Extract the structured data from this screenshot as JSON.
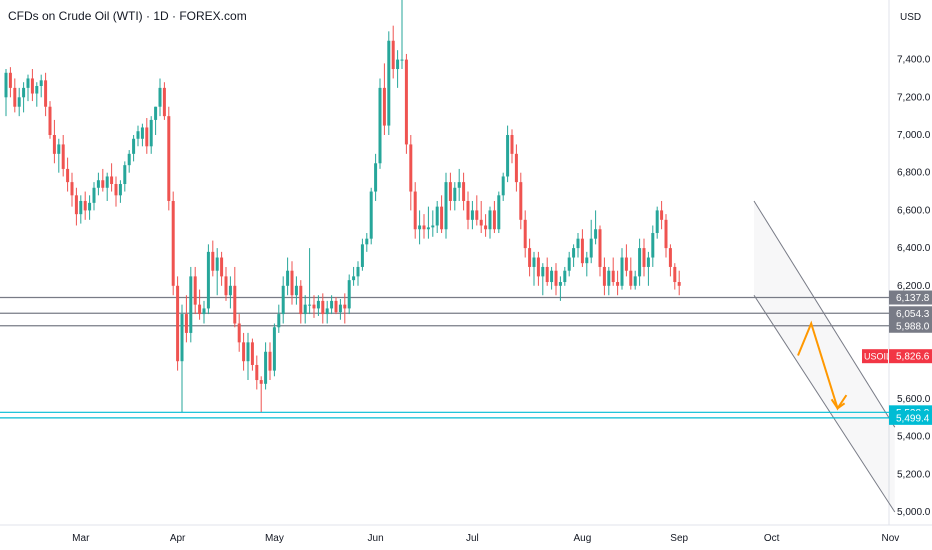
{
  "chart_data": {
    "type": "candlestick",
    "title": "CFDs on Crude Oil (WTI) · 1D · FOREX.com",
    "currency_label": "USD",
    "price_axis": {
      "ylim": [
        4930,
        7800
      ],
      "ticks": [
        "7,400.0",
        "7,200.0",
        "7,000.0",
        "6,800.0",
        "6,600.0",
        "6,400.0",
        "6,200.0",
        "5,600.0",
        "5,400.0",
        "5,200.0",
        "5,000.0"
      ],
      "tick_values": [
        7400,
        7200,
        7000,
        6800,
        6600,
        6400,
        6200,
        5600,
        5400,
        5200,
        5000
      ]
    },
    "time_axis": {
      "labels": [
        "Mar",
        "Apr",
        "May",
        "Jun",
        "Jul",
        "Aug",
        "Sep",
        "Oct",
        "Nov"
      ],
      "label_bar_index": [
        17,
        39,
        61,
        84,
        106,
        131,
        153,
        174,
        201
      ]
    },
    "colors": {
      "up": "#26a69a",
      "down": "#ef5350",
      "level": "#787b86",
      "support": "#00bcd4",
      "projection": "#ff9800",
      "channel": "#787b86",
      "current": "#f23645"
    },
    "horizontal_levels": [
      {
        "value": 6137.8,
        "label": "6,137.8",
        "color": "#787b86"
      },
      {
        "value": 6054.3,
        "label": "6,054.3",
        "color": "#787b86"
      },
      {
        "value": 5988.0,
        "label": "5,988.0",
        "color": "#787b86"
      },
      {
        "value": 5528.8,
        "label": "5,528.8",
        "color": "#00bcd4"
      },
      {
        "value": 5499.4,
        "label": "5,499.4",
        "color": "#00bcd4"
      }
    ],
    "current_price": {
      "symbol": "USOIL",
      "value": 5826.6,
      "label": "5,826.6"
    },
    "channel": {
      "upper": [
        [
          170,
          6650
        ],
        [
          202,
          5450
        ]
      ],
      "lower": [
        [
          170,
          6150
        ],
        [
          202,
          5000
        ]
      ]
    },
    "projection": [
      [
        180,
        5830
      ],
      [
        183,
        6000
      ],
      [
        189,
        5550
      ],
      [
        191,
        5620
      ]
    ],
    "candles": [
      [
        7200,
        7350,
        7100,
        7330
      ],
      [
        7330,
        7360,
        7200,
        7250
      ],
      [
        7250,
        7300,
        7120,
        7150
      ],
      [
        7150,
        7250,
        7100,
        7200
      ],
      [
        7200,
        7280,
        7120,
        7250
      ],
      [
        7250,
        7320,
        7180,
        7300
      ],
      [
        7300,
        7350,
        7180,
        7220
      ],
      [
        7220,
        7280,
        7150,
        7260
      ],
      [
        7260,
        7320,
        7200,
        7290
      ],
      [
        7290,
        7330,
        7100,
        7150
      ],
      [
        7150,
        7180,
        6980,
        7000
      ],
      [
        7000,
        7080,
        6850,
        6900
      ],
      [
        6900,
        6980,
        6800,
        6950
      ],
      [
        6950,
        7000,
        6780,
        6820
      ],
      [
        6820,
        6880,
        6700,
        6750
      ],
      [
        6750,
        6800,
        6620,
        6680
      ],
      [
        6680,
        6720,
        6520,
        6580
      ],
      [
        6580,
        6680,
        6530,
        6650
      ],
      [
        6650,
        6700,
        6550,
        6600
      ],
      [
        6600,
        6680,
        6550,
        6640
      ],
      [
        6640,
        6750,
        6600,
        6720
      ],
      [
        6720,
        6800,
        6680,
        6760
      ],
      [
        6760,
        6820,
        6700,
        6720
      ],
      [
        6720,
        6800,
        6650,
        6780
      ],
      [
        6780,
        6850,
        6700,
        6740
      ],
      [
        6740,
        6780,
        6620,
        6680
      ],
      [
        6680,
        6760,
        6640,
        6740
      ],
      [
        6740,
        6860,
        6700,
        6840
      ],
      [
        6840,
        6920,
        6800,
        6900
      ],
      [
        6900,
        7000,
        6860,
        6980
      ],
      [
        6980,
        7050,
        6940,
        7020
      ],
      [
        6980,
        7060,
        6940,
        7040
      ],
      [
        7040,
        7090,
        6900,
        6940
      ],
      [
        6940,
        7100,
        6900,
        7080
      ],
      [
        7080,
        7150,
        7000,
        7150
      ],
      [
        7150,
        7300,
        7100,
        7250
      ],
      [
        7250,
        7280,
        7080,
        7100
      ],
      [
        7100,
        7150,
        6600,
        6650
      ],
      [
        6650,
        6700,
        6150,
        6200
      ],
      [
        6200,
        6250,
        5750,
        5800
      ],
      [
        5800,
        6100,
        5530,
        6050
      ],
      [
        6050,
        6150,
        5900,
        5950
      ],
      [
        5950,
        6300,
        5900,
        6250
      ],
      [
        6250,
        6300,
        6050,
        6100
      ],
      [
        6100,
        6180,
        6020,
        6050
      ],
      [
        6050,
        6120,
        6000,
        6080
      ],
      [
        6080,
        6420,
        6050,
        6380
      ],
      [
        6380,
        6440,
        6250,
        6280
      ],
      [
        6280,
        6400,
        6150,
        6350
      ],
      [
        6350,
        6380,
        6200,
        6250
      ],
      [
        6250,
        6300,
        6120,
        6150
      ],
      [
        6150,
        6250,
        6080,
        6200
      ],
      [
        6200,
        6300,
        5980,
        6000
      ],
      [
        6000,
        6050,
        5850,
        5900
      ],
      [
        5900,
        5950,
        5750,
        5800
      ],
      [
        5800,
        5950,
        5700,
        5900
      ],
      [
        5900,
        5920,
        5750,
        5780
      ],
      [
        5780,
        5830,
        5650,
        5700
      ],
      [
        5700,
        5720,
        5530,
        5680
      ],
      [
        5680,
        5900,
        5650,
        5850
      ],
      [
        5850,
        5900,
        5700,
        5750
      ],
      [
        5750,
        6000,
        5720,
        5980
      ],
      [
        5980,
        6100,
        5950,
        6050
      ],
      [
        6050,
        6250,
        6000,
        6200
      ],
      [
        6200,
        6350,
        6150,
        6280
      ],
      [
        6280,
        6330,
        6100,
        6150
      ],
      [
        6150,
        6250,
        6100,
        6200
      ],
      [
        6200,
        6230,
        6000,
        6050
      ],
      [
        6050,
        6150,
        6000,
        6100
      ],
      [
        6100,
        6400,
        6050,
        6100
      ],
      [
        6100,
        6150,
        6030,
        6080
      ],
      [
        6080,
        6150,
        6040,
        6120
      ],
      [
        6120,
        6160,
        6000,
        6050
      ],
      [
        6050,
        6120,
        6000,
        6080
      ],
      [
        6080,
        6150,
        6050,
        6120
      ],
      [
        6120,
        6140,
        6050,
        6060
      ],
      [
        6060,
        6130,
        6020,
        6100
      ],
      [
        6100,
        6160,
        6000,
        6080
      ],
      [
        6080,
        6260,
        6050,
        6230
      ],
      [
        6230,
        6300,
        6200,
        6250
      ],
      [
        6250,
        6330,
        6200,
        6300
      ],
      [
        6300,
        6450,
        6280,
        6420
      ],
      [
        6420,
        6480,
        6380,
        6450
      ],
      [
        6450,
        6720,
        6420,
        6700
      ],
      [
        6700,
        6900,
        6650,
        6850
      ],
      [
        6850,
        7300,
        6820,
        7250
      ],
      [
        7250,
        7380,
        7000,
        7050
      ],
      [
        7050,
        7550,
        7000,
        7500
      ],
      [
        7500,
        7580,
        7300,
        7350
      ],
      [
        7350,
        7450,
        7250,
        7400
      ],
      [
        7400,
        7780,
        7350,
        7400
      ],
      [
        7400,
        7430,
        6900,
        6950
      ],
      [
        6950,
        7000,
        6600,
        6700
      ],
      [
        6700,
        6750,
        6450,
        6500
      ],
      [
        6500,
        6600,
        6420,
        6520
      ],
      [
        6520,
        6580,
        6450,
        6500
      ],
      [
        6500,
        6620,
        6450,
        6510
      ],
      [
        6510,
        6600,
        6460,
        6520
      ],
      [
        6520,
        6650,
        6480,
        6620
      ],
      [
        6620,
        6680,
        6480,
        6500
      ],
      [
        6500,
        6800,
        6450,
        6750
      ],
      [
        6750,
        6800,
        6600,
        6650
      ],
      [
        6650,
        6750,
        6600,
        6720
      ],
      [
        6720,
        6820,
        6650,
        6750
      ],
      [
        6750,
        6800,
        6600,
        6650
      ],
      [
        6650,
        6700,
        6500,
        6550
      ],
      [
        6550,
        6650,
        6500,
        6600
      ],
      [
        6600,
        6680,
        6520,
        6550
      ],
      [
        6550,
        6650,
        6480,
        6520
      ],
      [
        6520,
        6580,
        6460,
        6500
      ],
      [
        6500,
        6620,
        6450,
        6600
      ],
      [
        6600,
        6650,
        6480,
        6500
      ],
      [
        6500,
        6700,
        6480,
        6680
      ],
      [
        6680,
        6800,
        6650,
        6780
      ],
      [
        6780,
        7050,
        6750,
        7000
      ],
      [
        7000,
        7030,
        6850,
        6900
      ],
      [
        6900,
        6950,
        6700,
        6750
      ],
      [
        6750,
        6800,
        6500,
        6550
      ],
      [
        6550,
        6600,
        6350,
        6400
      ],
      [
        6400,
        6450,
        6250,
        6300
      ],
      [
        6300,
        6380,
        6200,
        6350
      ],
      [
        6350,
        6380,
        6200,
        6250
      ],
      [
        6250,
        6320,
        6150,
        6300
      ],
      [
        6300,
        6350,
        6200,
        6220
      ],
      [
        6220,
        6300,
        6180,
        6280
      ],
      [
        6280,
        6320,
        6150,
        6200
      ],
      [
        6200,
        6250,
        6120,
        6220
      ],
      [
        6220,
        6300,
        6200,
        6280
      ],
      [
        6280,
        6380,
        6250,
        6350
      ],
      [
        6350,
        6420,
        6300,
        6400
      ],
      [
        6400,
        6480,
        6350,
        6450
      ],
      [
        6450,
        6500,
        6300,
        6320
      ],
      [
        6320,
        6380,
        6250,
        6350
      ],
      [
        6350,
        6550,
        6320,
        6450
      ],
      [
        6450,
        6600,
        6420,
        6500
      ],
      [
        6500,
        6520,
        6250,
        6300
      ],
      [
        6300,
        6350,
        6150,
        6200
      ],
      [
        6200,
        6300,
        6150,
        6280
      ],
      [
        6280,
        6350,
        6200,
        6220
      ],
      [
        6220,
        6280,
        6150,
        6200
      ],
      [
        6200,
        6400,
        6180,
        6350
      ],
      [
        6350,
        6420,
        6250,
        6280
      ],
      [
        6280,
        6350,
        6180,
        6200
      ],
      [
        6200,
        6280,
        6180,
        6250
      ],
      [
        6250,
        6450,
        6200,
        6400
      ],
      [
        6400,
        6450,
        6250,
        6300
      ],
      [
        6300,
        6380,
        6200,
        6350
      ],
      [
        6350,
        6520,
        6300,
        6480
      ],
      [
        6480,
        6620,
        6450,
        6600
      ],
      [
        6600,
        6650,
        6500,
        6550
      ],
      [
        6550,
        6580,
        6350,
        6400
      ],
      [
        6400,
        6420,
        6250,
        6300
      ],
      [
        6300,
        6320,
        6180,
        6220
      ],
      [
        6220,
        6280,
        6150,
        6200
      ]
    ]
  }
}
